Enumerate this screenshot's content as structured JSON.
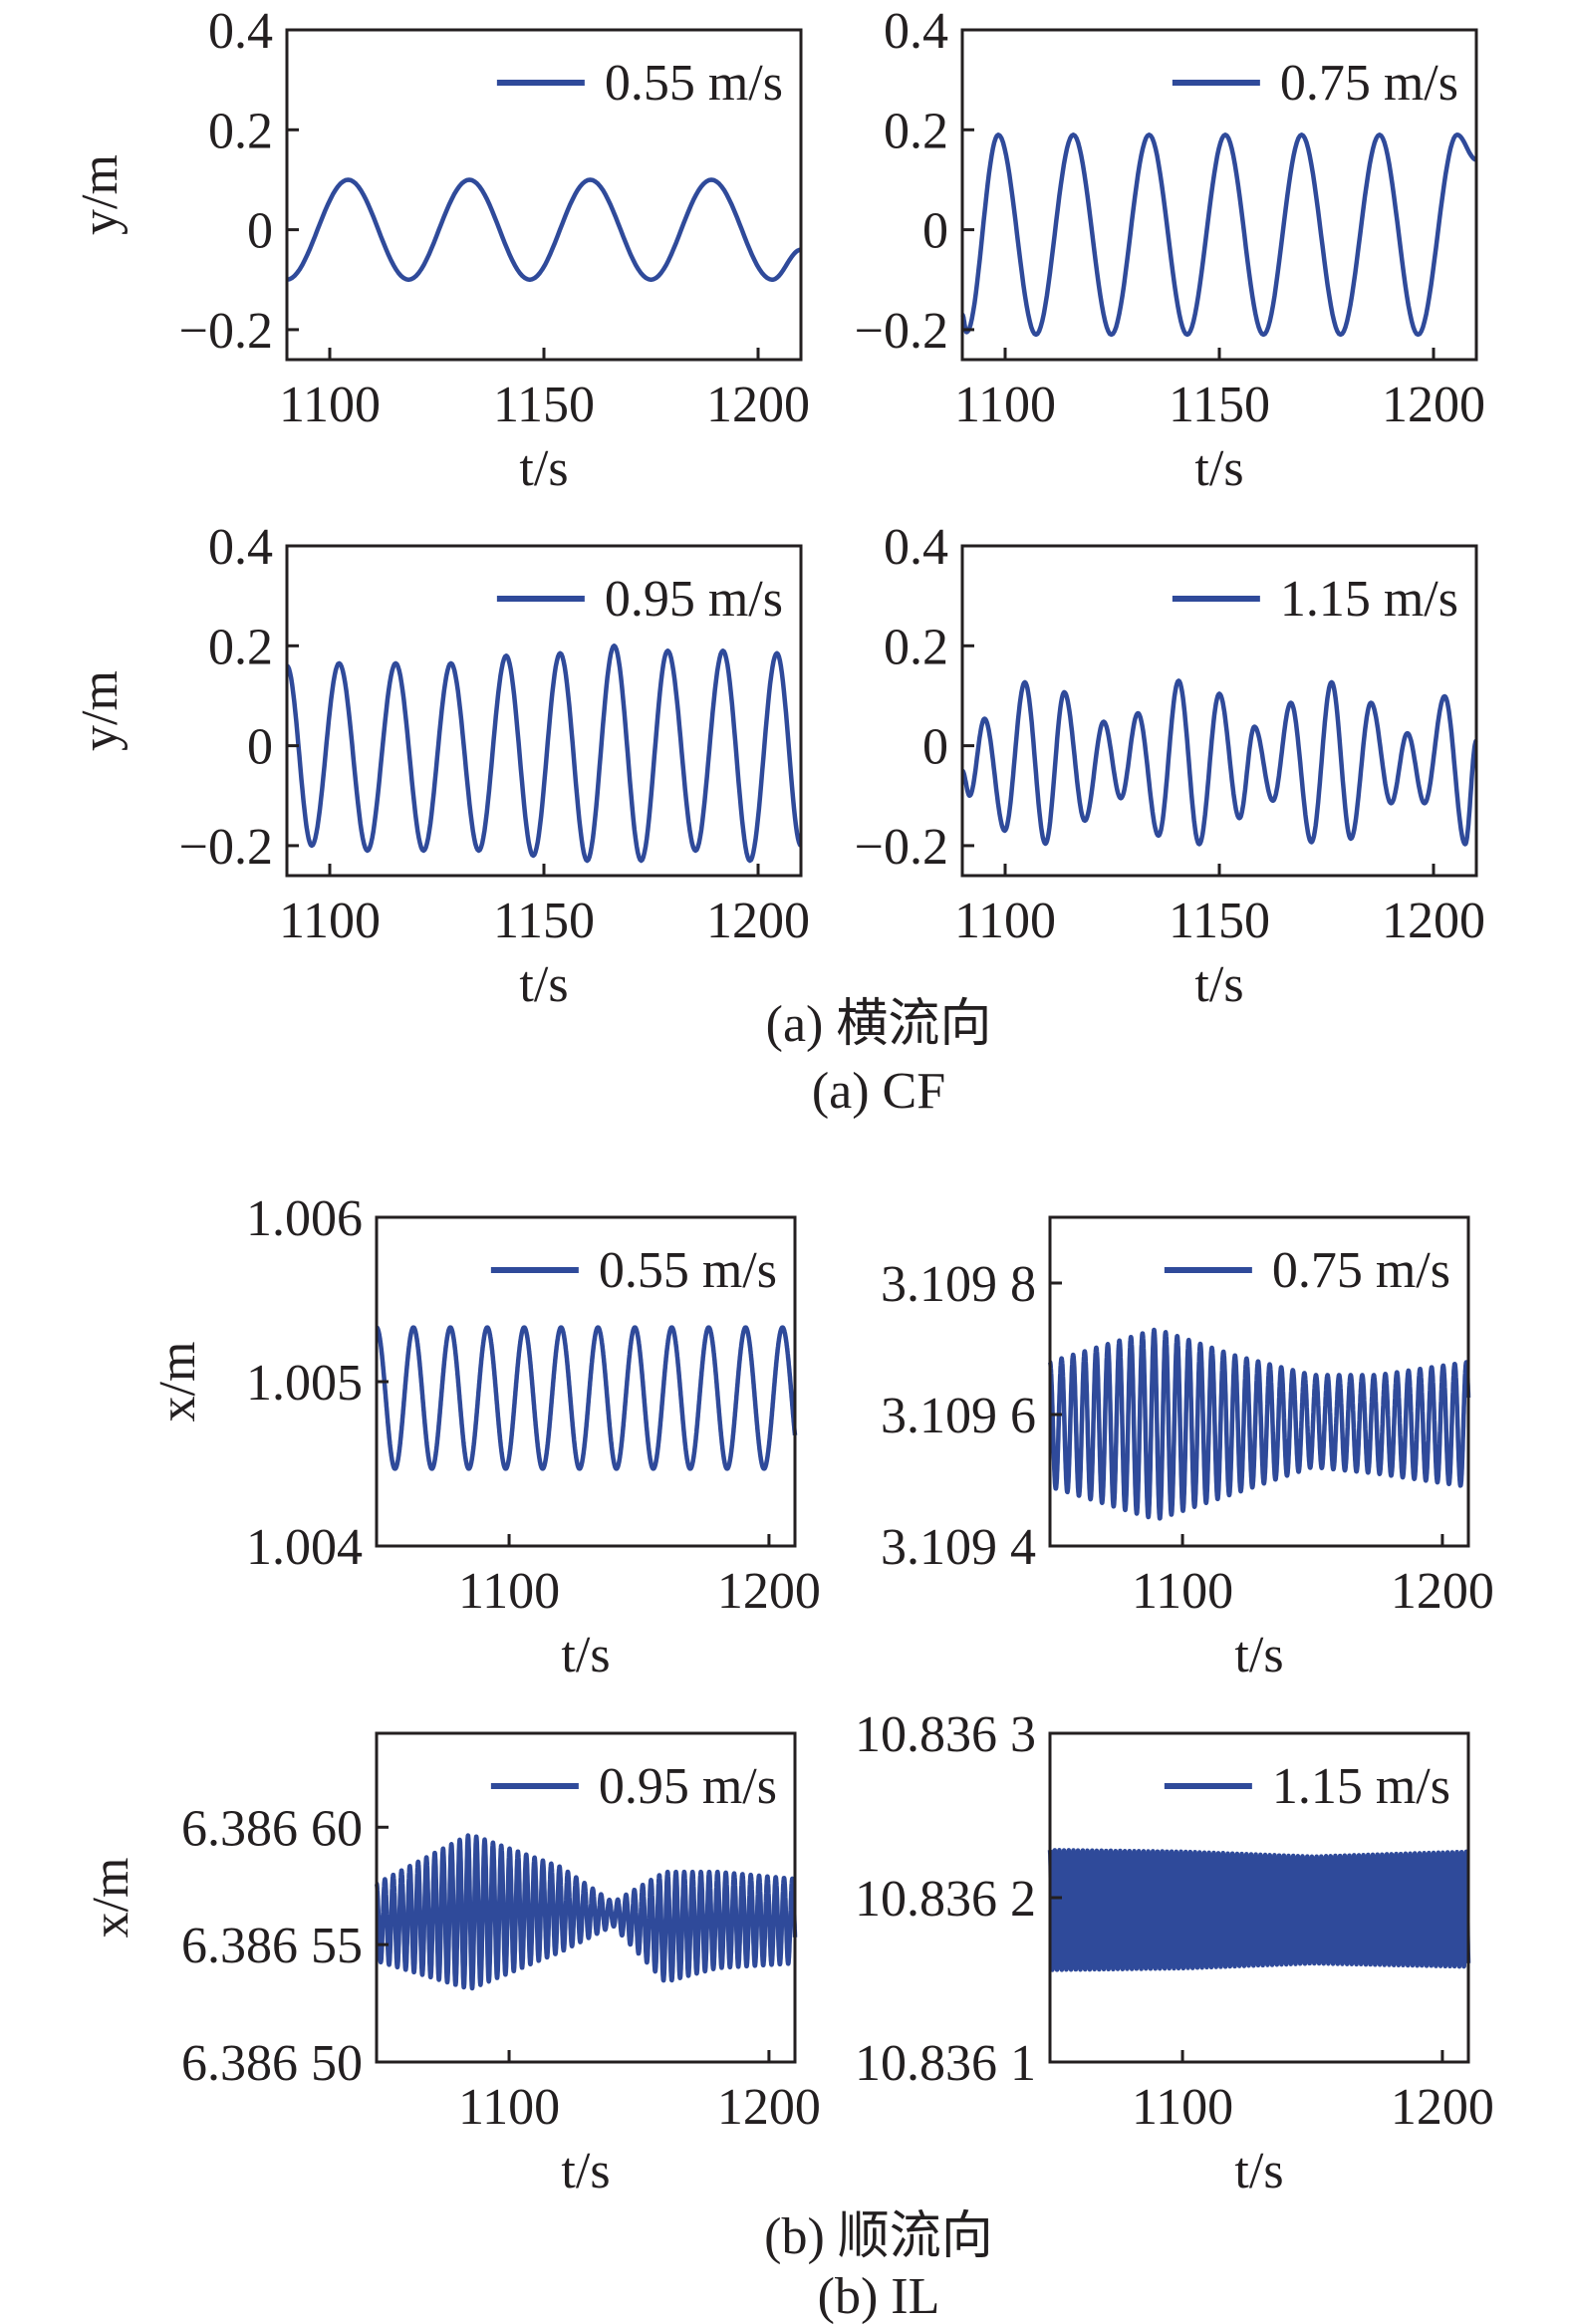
{
  "captions": {
    "a_cn": "(a) 横流向",
    "a_en": "(a) CF",
    "b_cn": "(b) 顺流向",
    "b_en": "(b) IL"
  },
  "line_color": "#2f4a9a",
  "chart_data": [
    {
      "id": "a1",
      "type": "line",
      "legend": "0.55 m/s",
      "xlabel": "t/s",
      "ylabel": "y/m",
      "xlim": [
        1090,
        1210
      ],
      "ylim": [
        -0.26,
        0.4
      ],
      "xticks": [
        1100,
        1150,
        1200
      ],
      "yticks": [
        0.4,
        0.2,
        0,
        -0.2
      ],
      "ytick_labels": [
        "0.4",
        "0.2",
        "0",
        "−0.2"
      ],
      "extrema": [
        [
          1090,
          -0.1
        ],
        [
          1104.3,
          0.1
        ],
        [
          1118.4,
          -0.1
        ],
        [
          1132.6,
          0.1
        ],
        [
          1146.7,
          -0.1
        ],
        [
          1160.8,
          0.1
        ],
        [
          1175,
          -0.1
        ],
        [
          1189.1,
          0.1
        ],
        [
          1203.3,
          -0.1
        ],
        [
          1210,
          -0.04
        ]
      ]
    },
    {
      "id": "a2",
      "type": "line",
      "legend": "0.75 m/s",
      "xlabel": "t/s",
      "ylabel": "",
      "xlim": [
        1090,
        1210
      ],
      "ylim": [
        -0.26,
        0.4
      ],
      "xticks": [
        1100,
        1150,
        1200
      ],
      "yticks": [
        0.4,
        0.2,
        0,
        -0.2
      ],
      "ytick_labels": [
        "0.4",
        "0.2",
        "0",
        "−0.2"
      ],
      "extrema": [
        [
          1090,
          -0.17
        ],
        [
          1091,
          -0.205
        ],
        [
          1098.4,
          0.19
        ],
        [
          1107.2,
          -0.21
        ],
        [
          1115.9,
          0.19
        ],
        [
          1124.8,
          -0.21
        ],
        [
          1133.6,
          0.19
        ],
        [
          1142.5,
          -0.21
        ],
        [
          1151.4,
          0.19
        ],
        [
          1160.3,
          -0.21
        ],
        [
          1169.2,
          0.19
        ],
        [
          1178.3,
          -0.21
        ],
        [
          1187.4,
          0.19
        ],
        [
          1196.4,
          -0.21
        ],
        [
          1205.5,
          0.19
        ],
        [
          1210,
          0.14
        ]
      ]
    },
    {
      "id": "a3",
      "type": "line",
      "legend": "0.95 m/s",
      "xlabel": "t/s",
      "ylabel": "y/m",
      "xlim": [
        1090,
        1210
      ],
      "ylim": [
        -0.26,
        0.4
      ],
      "xticks": [
        1100,
        1150,
        1200
      ],
      "yticks": [
        0.4,
        0.2,
        0,
        -0.2
      ],
      "ytick_labels": [
        "0.4",
        "0.2",
        "0",
        "−0.2"
      ],
      "extrema": [
        [
          1090,
          0.16
        ],
        [
          1095.8,
          -0.2
        ],
        [
          1102.2,
          0.165
        ],
        [
          1108.8,
          -0.21
        ],
        [
          1115.4,
          0.165
        ],
        [
          1121.9,
          -0.21
        ],
        [
          1128.3,
          0.165
        ],
        [
          1134.8,
          -0.21
        ],
        [
          1141.2,
          0.18
        ],
        [
          1147.5,
          -0.22
        ],
        [
          1153.8,
          0.185
        ],
        [
          1160.1,
          -0.23
        ],
        [
          1166.4,
          0.2
        ],
        [
          1172.7,
          -0.23
        ],
        [
          1178.9,
          0.19
        ],
        [
          1185.4,
          -0.21
        ],
        [
          1191.8,
          0.19
        ],
        [
          1198.1,
          -0.23
        ],
        [
          1204.4,
          0.185
        ],
        [
          1210,
          -0.2
        ]
      ]
    },
    {
      "id": "a4",
      "type": "line",
      "legend": "1.15 m/s",
      "xlabel": "t/s",
      "ylabel": "",
      "xlim": [
        1090,
        1210
      ],
      "ylim": [
        -0.26,
        0.4
      ],
      "xticks": [
        1100,
        1150,
        1200
      ],
      "yticks": [
        0.4,
        0.2,
        0,
        -0.2
      ],
      "ytick_labels": [
        "0.4",
        "0.2",
        "0",
        "−0.2"
      ],
      "extrema": [
        [
          1090,
          -0.05
        ],
        [
          1091.7,
          -0.1
        ],
        [
          1095.2,
          0.054
        ],
        [
          1099.9,
          -0.17
        ],
        [
          1104.6,
          0.127
        ],
        [
          1109.4,
          -0.196
        ],
        [
          1113.8,
          0.107
        ],
        [
          1118.6,
          -0.15
        ],
        [
          1123,
          0.048
        ],
        [
          1127,
          -0.105
        ],
        [
          1131,
          0.065
        ],
        [
          1135.8,
          -0.18
        ],
        [
          1140.5,
          0.13
        ],
        [
          1145.3,
          -0.197
        ],
        [
          1150,
          0.104
        ],
        [
          1154.7,
          -0.145
        ],
        [
          1158.2,
          0.038
        ],
        [
          1162.5,
          -0.11
        ],
        [
          1166.7,
          0.086
        ],
        [
          1171.5,
          -0.193
        ],
        [
          1176.2,
          0.127
        ],
        [
          1180.7,
          -0.186
        ],
        [
          1185.4,
          0.086
        ],
        [
          1190.1,
          -0.115
        ],
        [
          1193.9,
          0.025
        ],
        [
          1197.9,
          -0.115
        ],
        [
          1202.6,
          0.099
        ],
        [
          1207.4,
          -0.197
        ],
        [
          1210,
          0.01
        ]
      ]
    },
    {
      "id": "b1",
      "type": "line",
      "legend": "0.55 m/s",
      "xlabel": "t/s",
      "ylabel": "x/m",
      "xlim": [
        1049,
        1210
      ],
      "ylim": [
        1.004,
        1.006
      ],
      "xticks": [
        1100,
        1200
      ],
      "yticks": [
        1.006,
        1.005,
        1.004
      ],
      "ytick_labels": [
        "1.006",
        "1.005",
        "1.004"
      ],
      "period": 14.2,
      "envelope": [
        [
          1049,
          1.00533,
          1.00447
        ],
        [
          1210,
          1.00533,
          1.00447
        ]
      ]
    },
    {
      "id": "b2",
      "type": "line",
      "legend": "0.75 m/s",
      "xlabel": "t/s",
      "ylabel": "",
      "xlim": [
        1049,
        1210
      ],
      "ylim": [
        3.1094,
        3.1099
      ],
      "xticks": [
        1100,
        1200
      ],
      "yticks": [
        3.1098,
        3.1096,
        3.1094
      ],
      "ytick_labels": [
        "3.109 8",
        "3.109 6",
        "3.109 4"
      ],
      "period": 4.45,
      "envelope": [
        [
          1049,
          3.10968,
          3.10949
        ],
        [
          1090,
          3.10973,
          3.10944
        ],
        [
          1120,
          3.10969,
          3.10948
        ],
        [
          1150,
          3.10966,
          3.10952
        ],
        [
          1175,
          3.10966,
          3.10951
        ],
        [
          1210,
          3.10968,
          3.10949
        ]
      ]
    },
    {
      "id": "b3",
      "type": "line",
      "legend": "0.95 m/s",
      "xlabel": "t/s",
      "ylabel": "x/m",
      "xlim": [
        1049,
        1210
      ],
      "ylim": [
        6.3865,
        6.38664
      ],
      "xticks": [
        1100,
        1200
      ],
      "yticks": [
        6.3866,
        6.38655,
        6.3865
      ],
      "ytick_labels": [
        "6.386 60",
        "6.386 55",
        "6.386 50"
      ],
      "period": 3.2,
      "envelope": [
        [
          1049,
          6.386576,
          6.386543
        ],
        [
          1085,
          6.386597,
          6.386531
        ],
        [
          1120,
          6.386583,
          6.386547
        ],
        [
          1140,
          6.386568,
          6.386558
        ],
        [
          1160,
          6.386581,
          6.386534
        ],
        [
          1180,
          6.386581,
          6.38654
        ],
        [
          1210,
          6.386578,
          6.386542
        ]
      ]
    },
    {
      "id": "b4",
      "type": "line",
      "legend": "1.15 m/s",
      "xlabel": "t/s",
      "ylabel": "",
      "xlim": [
        1049,
        1210
      ],
      "ylim": [
        10.8361,
        10.8363
      ],
      "xticks": [
        1100,
        1200
      ],
      "yticks": [
        10.8363,
        10.8362,
        10.8361
      ],
      "ytick_labels": [
        "10.836 3",
        "10.836 2",
        "10.836 1"
      ],
      "period": 1.8,
      "envelope": [
        [
          1049,
          10.836229,
          10.836156
        ],
        [
          1100,
          10.836228,
          10.836157
        ],
        [
          1150,
          10.836225,
          10.83616
        ],
        [
          1210,
          10.836228,
          10.836158
        ]
      ]
    }
  ]
}
